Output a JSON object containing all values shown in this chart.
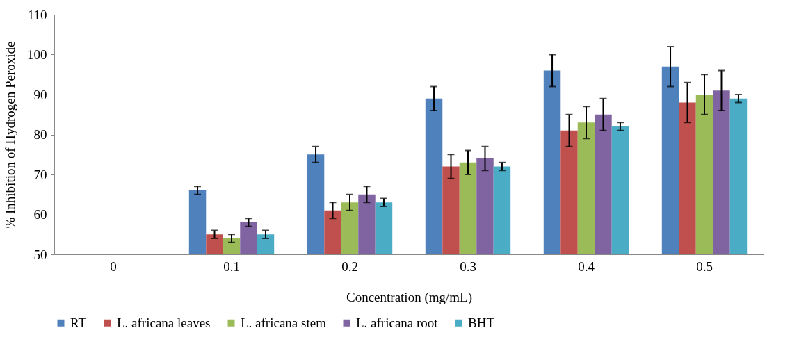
{
  "chart_data": {
    "type": "bar",
    "xlabel": "Concentration (mg/mL)",
    "ylabel": "% Inhibition of Hydrogen Peroxide",
    "categories": [
      "0",
      "0.1",
      "0.2",
      "0.3",
      "0.4",
      "0.5"
    ],
    "series": [
      {
        "name": "RT",
        "color": "#4f81bd",
        "values": [
          null,
          66,
          75,
          89,
          96,
          97
        ],
        "errors": [
          null,
          1,
          2,
          3,
          4,
          5
        ]
      },
      {
        "name": "L. africana leaves",
        "color": "#c0504d",
        "values": [
          null,
          55,
          61,
          72,
          81,
          88
        ],
        "errors": [
          null,
          1,
          2,
          3,
          4,
          5
        ]
      },
      {
        "name": "L. africana stem",
        "color": "#9bbb59",
        "values": [
          null,
          54,
          63,
          73,
          83,
          90
        ],
        "errors": [
          null,
          1,
          2,
          3,
          4,
          5
        ]
      },
      {
        "name": "L. africana root",
        "color": "#8064a2",
        "values": [
          null,
          58,
          65,
          74,
          85,
          91
        ],
        "errors": [
          null,
          1,
          2,
          3,
          4,
          5
        ]
      },
      {
        "name": "BHT",
        "color": "#4bacc6",
        "values": [
          null,
          55,
          63,
          72,
          82,
          89
        ],
        "errors": [
          null,
          1,
          1,
          1,
          1,
          1
        ]
      }
    ],
    "ylim": [
      50,
      110
    ],
    "yticks": [
      50,
      60,
      70,
      80,
      90,
      100,
      110
    ],
    "grid": false,
    "legend": "bottom"
  }
}
